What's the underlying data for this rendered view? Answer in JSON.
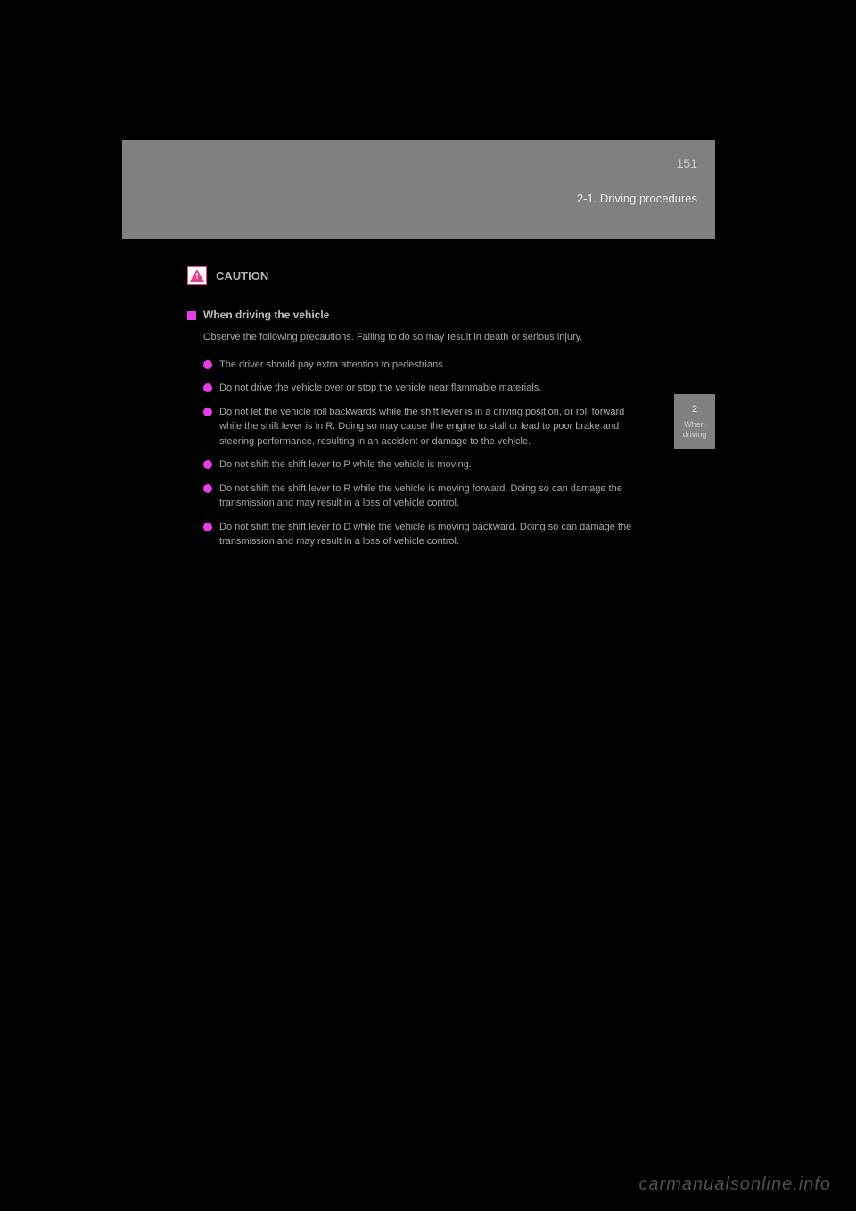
{
  "header": {
    "page_number": "151",
    "section": "2-1. Driving procedures"
  },
  "caution": {
    "label": "CAUTION"
  },
  "subsection": {
    "title": "When driving the vehicle"
  },
  "intro_text": "Observe the following precautions. Failing to do so may result in death or serious injury.",
  "bullets": {
    "b1": "The driver should pay extra attention to pedestrians.",
    "b2": "Do not drive the vehicle over or stop the vehicle near flammable materials.",
    "b3": "Do not let the vehicle roll backwards while the shift lever is in a driving position, or roll forward while the shift lever is in R. Doing so may cause the engine to stall or lead to poor brake and steering performance, resulting in an accident or damage to the vehicle.",
    "b4": "Do not shift the shift lever to P while the vehicle is moving.",
    "b5": "Do not shift the shift lever to R while the vehicle is moving forward. Doing so can damage the transmission and may result in a loss of vehicle control.",
    "b6": "Do not shift the shift lever to D while the vehicle is moving backward. Doing so can damage the transmission and may result in a loss of vehicle control."
  },
  "side_tab": {
    "number": "2",
    "label": "When driving"
  },
  "watermark": "carmanualsonline.info",
  "colors": {
    "background": "#000000",
    "header_bg": "#808080",
    "text_light": "#e8e8e8",
    "text_body": "#a8a8a8",
    "marker_pink": "#e83ee8",
    "caution_pink": "#e83e8c"
  }
}
